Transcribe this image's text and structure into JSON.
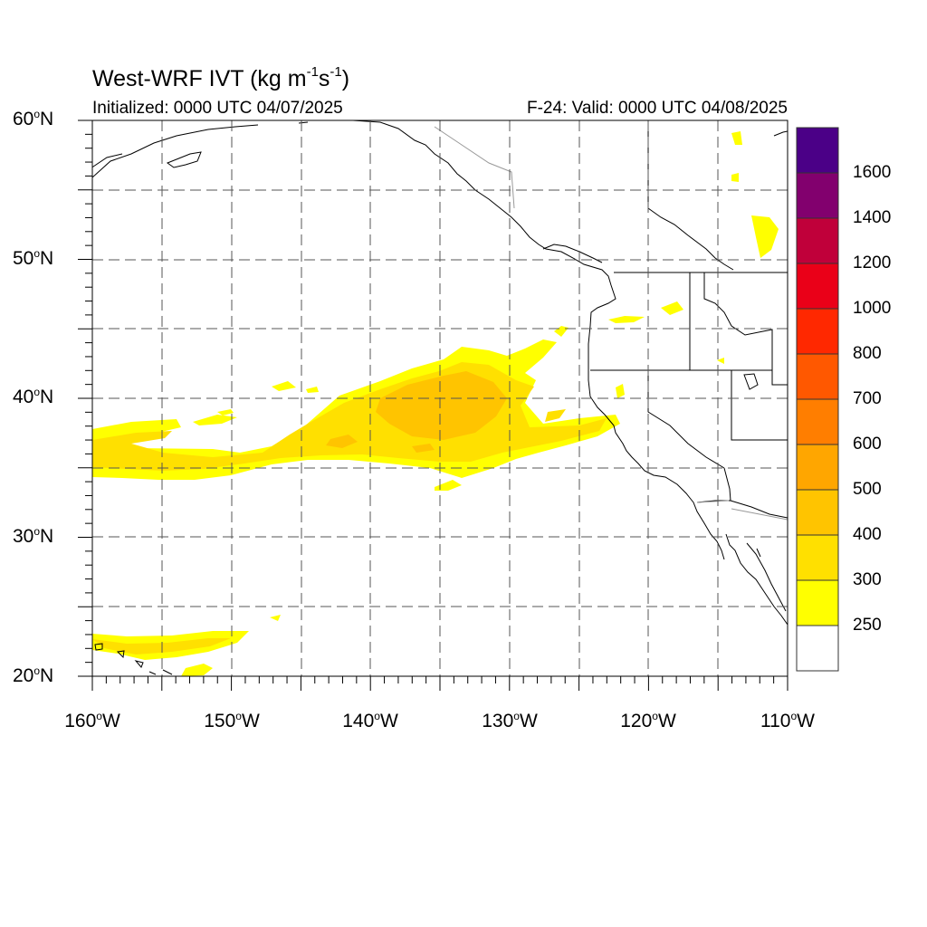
{
  "title": {
    "prefix": "West-WRF IVT (kg m",
    "exp1": "-1",
    "mid": "s",
    "exp2": "-1",
    "suffix": ")"
  },
  "initialized": "Initialized: 0000 UTC 04/07/2025",
  "valid": "F-24: Valid: 0000 UTC 04/08/2025",
  "axes": {
    "lat_labels": [
      {
        "deg": "60",
        "sym": "o",
        "hemi": "N"
      },
      {
        "deg": "50",
        "sym": "o",
        "hemi": "N"
      },
      {
        "deg": "40",
        "sym": "o",
        "hemi": "N"
      },
      {
        "deg": "30",
        "sym": "o",
        "hemi": "N"
      },
      {
        "deg": "20",
        "sym": "o",
        "hemi": "N"
      }
    ],
    "lon_labels": [
      {
        "deg": "160",
        "sym": "o",
        "hemi": "W"
      },
      {
        "deg": "150",
        "sym": "o",
        "hemi": "W"
      },
      {
        "deg": "140",
        "sym": "o",
        "hemi": "W"
      },
      {
        "deg": "130",
        "sym": "o",
        "hemi": "W"
      },
      {
        "deg": "120",
        "sym": "o",
        "hemi": "W"
      },
      {
        "deg": "110",
        "sym": "o",
        "hemi": "W"
      }
    ],
    "lon_range": [
      -160,
      -110
    ],
    "lat_range": [
      20,
      60
    ],
    "grid": "dashed, every 5 degrees"
  },
  "colorbar": {
    "labels": [
      "1600",
      "1400",
      "1200",
      "1000",
      "800",
      "700",
      "600",
      "500",
      "400",
      "300",
      "250"
    ],
    "colors_top_to_bottom": [
      "#4B0087",
      "#82006E",
      "#C0003A",
      "#EA0018",
      "#FF2800",
      "#FF5800",
      "#FF7E00",
      "#FFA600",
      "#FFC400",
      "#FFE000",
      "#FFFF00",
      "#FFFFFF"
    ]
  },
  "fill_colors": {
    "250": "#FFFF00",
    "300": "#FFE000",
    "400": "#FFC400"
  }
}
